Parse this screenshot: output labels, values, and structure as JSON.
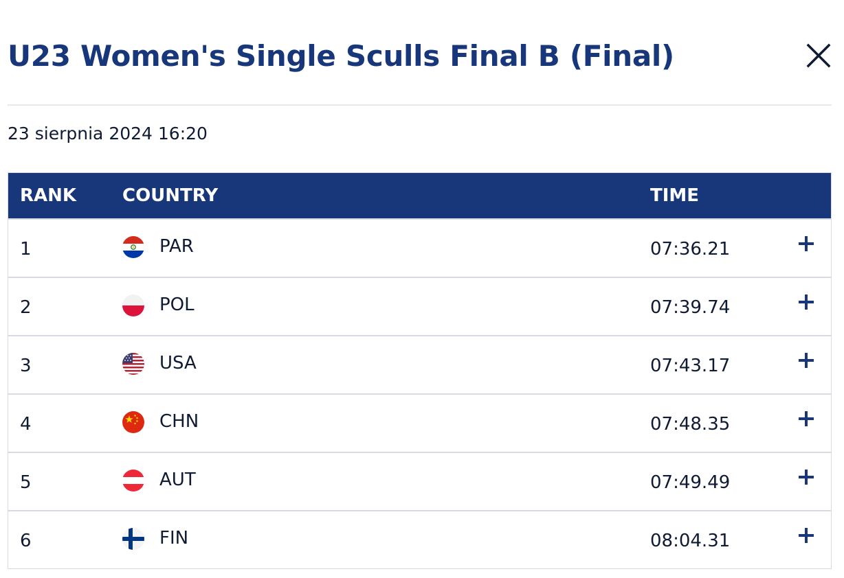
{
  "title": "U23 Women's Single Sculls Final B (Final)",
  "date": "23 sierpnia 2024 16:20",
  "colors": {
    "primary": "#17377a",
    "text": "#0f1a33",
    "divider": "#d6dae2"
  },
  "table": {
    "headers": {
      "rank": "RANK",
      "country": "COUNTRY",
      "time": "TIME"
    },
    "rows": [
      {
        "rank": "1",
        "country": "PAR",
        "time": "07:36.21",
        "flag_icon": "paraguay-flag-icon"
      },
      {
        "rank": "2",
        "country": "POL",
        "time": "07:39.74",
        "flag_icon": "poland-flag-icon"
      },
      {
        "rank": "3",
        "country": "USA",
        "time": "07:43.17",
        "flag_icon": "usa-flag-icon"
      },
      {
        "rank": "4",
        "country": "CHN",
        "time": "07:48.35",
        "flag_icon": "china-flag-icon"
      },
      {
        "rank": "5",
        "country": "AUT",
        "time": "07:49.49",
        "flag_icon": "austria-flag-icon"
      },
      {
        "rank": "6",
        "country": "FIN",
        "time": "08:04.31",
        "flag_icon": "finland-flag-icon"
      }
    ]
  }
}
